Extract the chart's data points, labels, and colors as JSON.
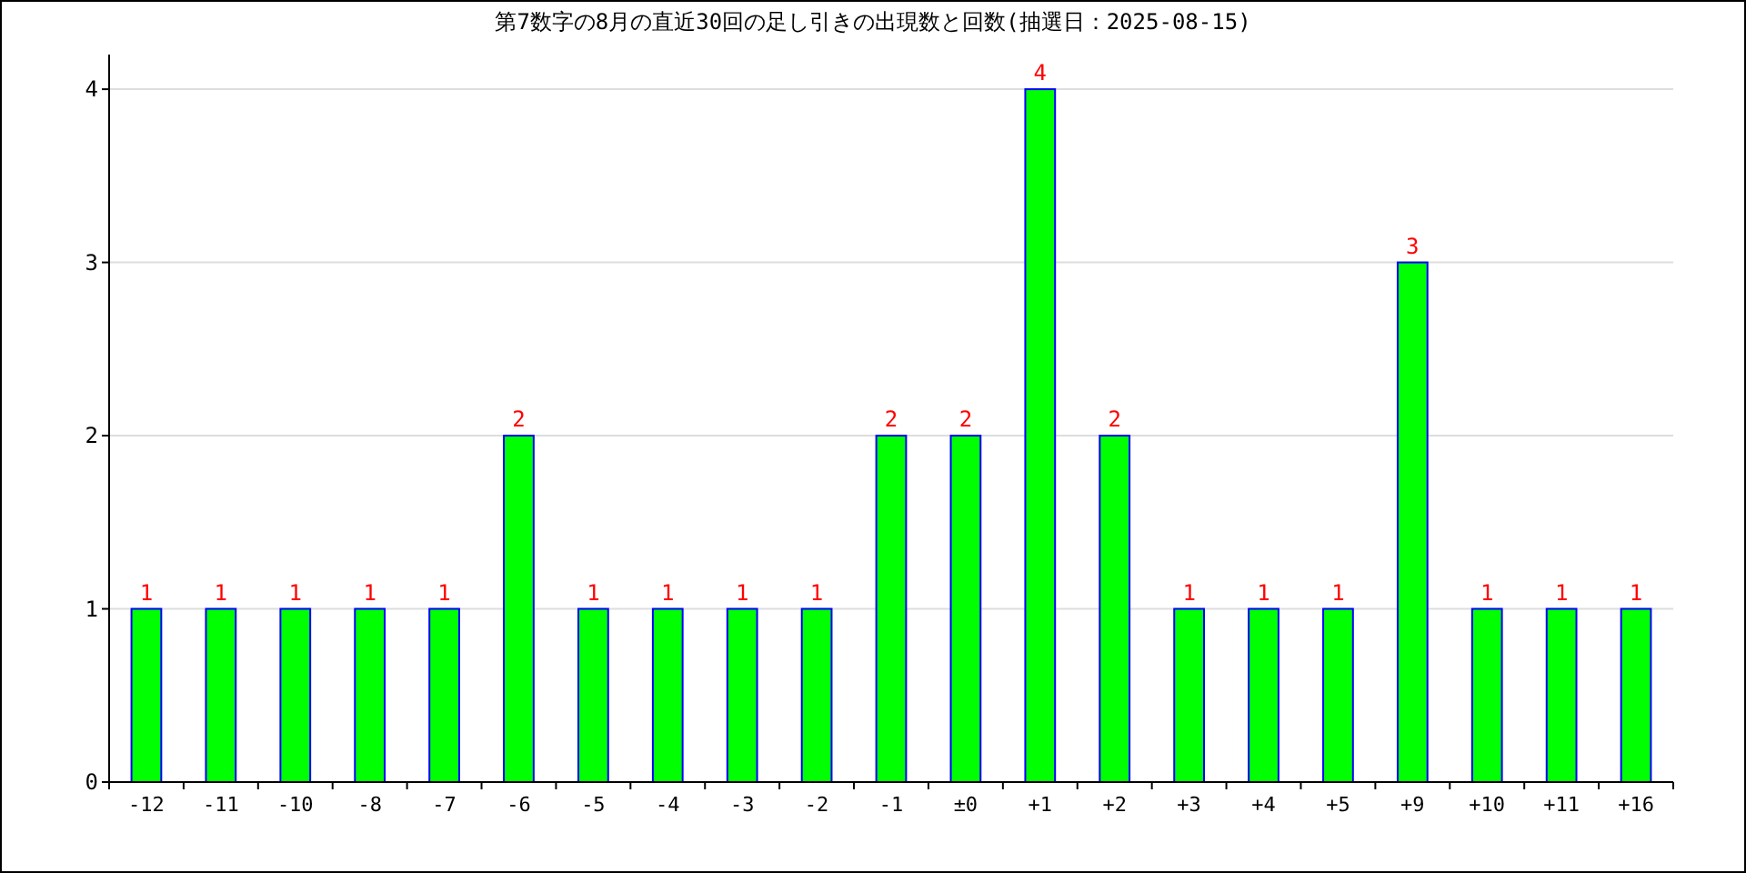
{
  "chart_data": {
    "type": "bar",
    "title": "第7数字の8月の直近30回の足し引きの出現数と回数(抽選日：2025-08-15)",
    "categories": [
      "-12",
      "-11",
      "-10",
      "-8",
      "-7",
      "-6",
      "-5",
      "-4",
      "-3",
      "-2",
      "-1",
      "±0",
      "+1",
      "+2",
      "+3",
      "+4",
      "+5",
      "+9",
      "+10",
      "+11",
      "+16"
    ],
    "values": [
      1,
      1,
      1,
      1,
      1,
      2,
      1,
      1,
      1,
      1,
      2,
      2,
      4,
      2,
      1,
      1,
      1,
      3,
      1,
      1,
      1
    ],
    "color": "#00ff00",
    "ylim": [
      0,
      4.2
    ],
    "yticks": [
      0,
      1,
      2,
      3,
      4
    ],
    "grid": "y",
    "data_labels": true
  }
}
